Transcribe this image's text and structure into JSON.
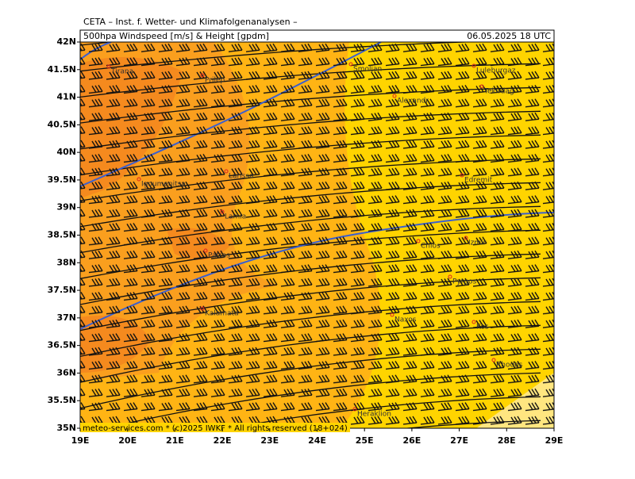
{
  "header": {
    "title": "CETA – Inst. f. Wetter- und Klimafolgenanalysen –",
    "product": "500hpa Windspeed [m/s] & Height [gpdm]",
    "valid": "06.05.2025 18 UTC"
  },
  "footer": "meteo-services.com * (c)2025 IWKF * All rights reserved (18+024)",
  "axes": {
    "lat": [
      "42N",
      "41.5N",
      "41N",
      "40.5N",
      "40N",
      "39.5N",
      "39N",
      "38.5N",
      "38N",
      "37.5N",
      "37N",
      "36.5N",
      "36N",
      "35.5N",
      "35N"
    ],
    "lon": [
      "19E",
      "20E",
      "21E",
      "22E",
      "23E",
      "24E",
      "25E",
      "26E",
      "27E",
      "28E",
      "29E"
    ]
  },
  "places": [
    "Tirana",
    "Prilep",
    "Smoljan",
    "Luleburgaz",
    "Alexandr",
    "Tekirdag",
    "Larissa",
    "Igoumenitsa",
    "Edremit",
    "Lamia",
    "Patras",
    "Chios",
    "Izmir",
    "Pyrgos",
    "Kalamata",
    "Naxos",
    "Kos",
    "Heraklion",
    "Rhodos"
  ]
}
